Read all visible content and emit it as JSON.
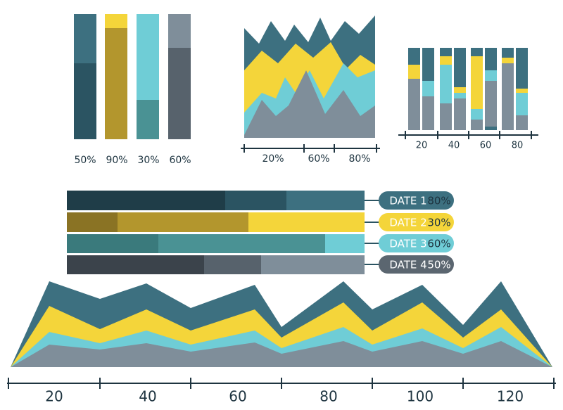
{
  "top_bars": {
    "labels": [
      "50%",
      "90%",
      "30%",
      "60%"
    ]
  },
  "mountain_chart": {
    "axis_labels": [
      "20%",
      "60%",
      "80%"
    ]
  },
  "small_bars": {
    "axis_labels": [
      "20",
      "40",
      "60",
      "80"
    ]
  },
  "horizontal_bars": {
    "rows": [
      {
        "label": "DATE 1",
        "value": "80%"
      },
      {
        "label": "DATE 2",
        "value": "30%"
      },
      {
        "label": "DATE 3",
        "value": "60%"
      },
      {
        "label": "DATE 4",
        "value": "50%"
      }
    ]
  },
  "bottom_chart": {
    "axis_labels": [
      "20",
      "40",
      "60",
      "80",
      "100",
      "120"
    ]
  }
}
